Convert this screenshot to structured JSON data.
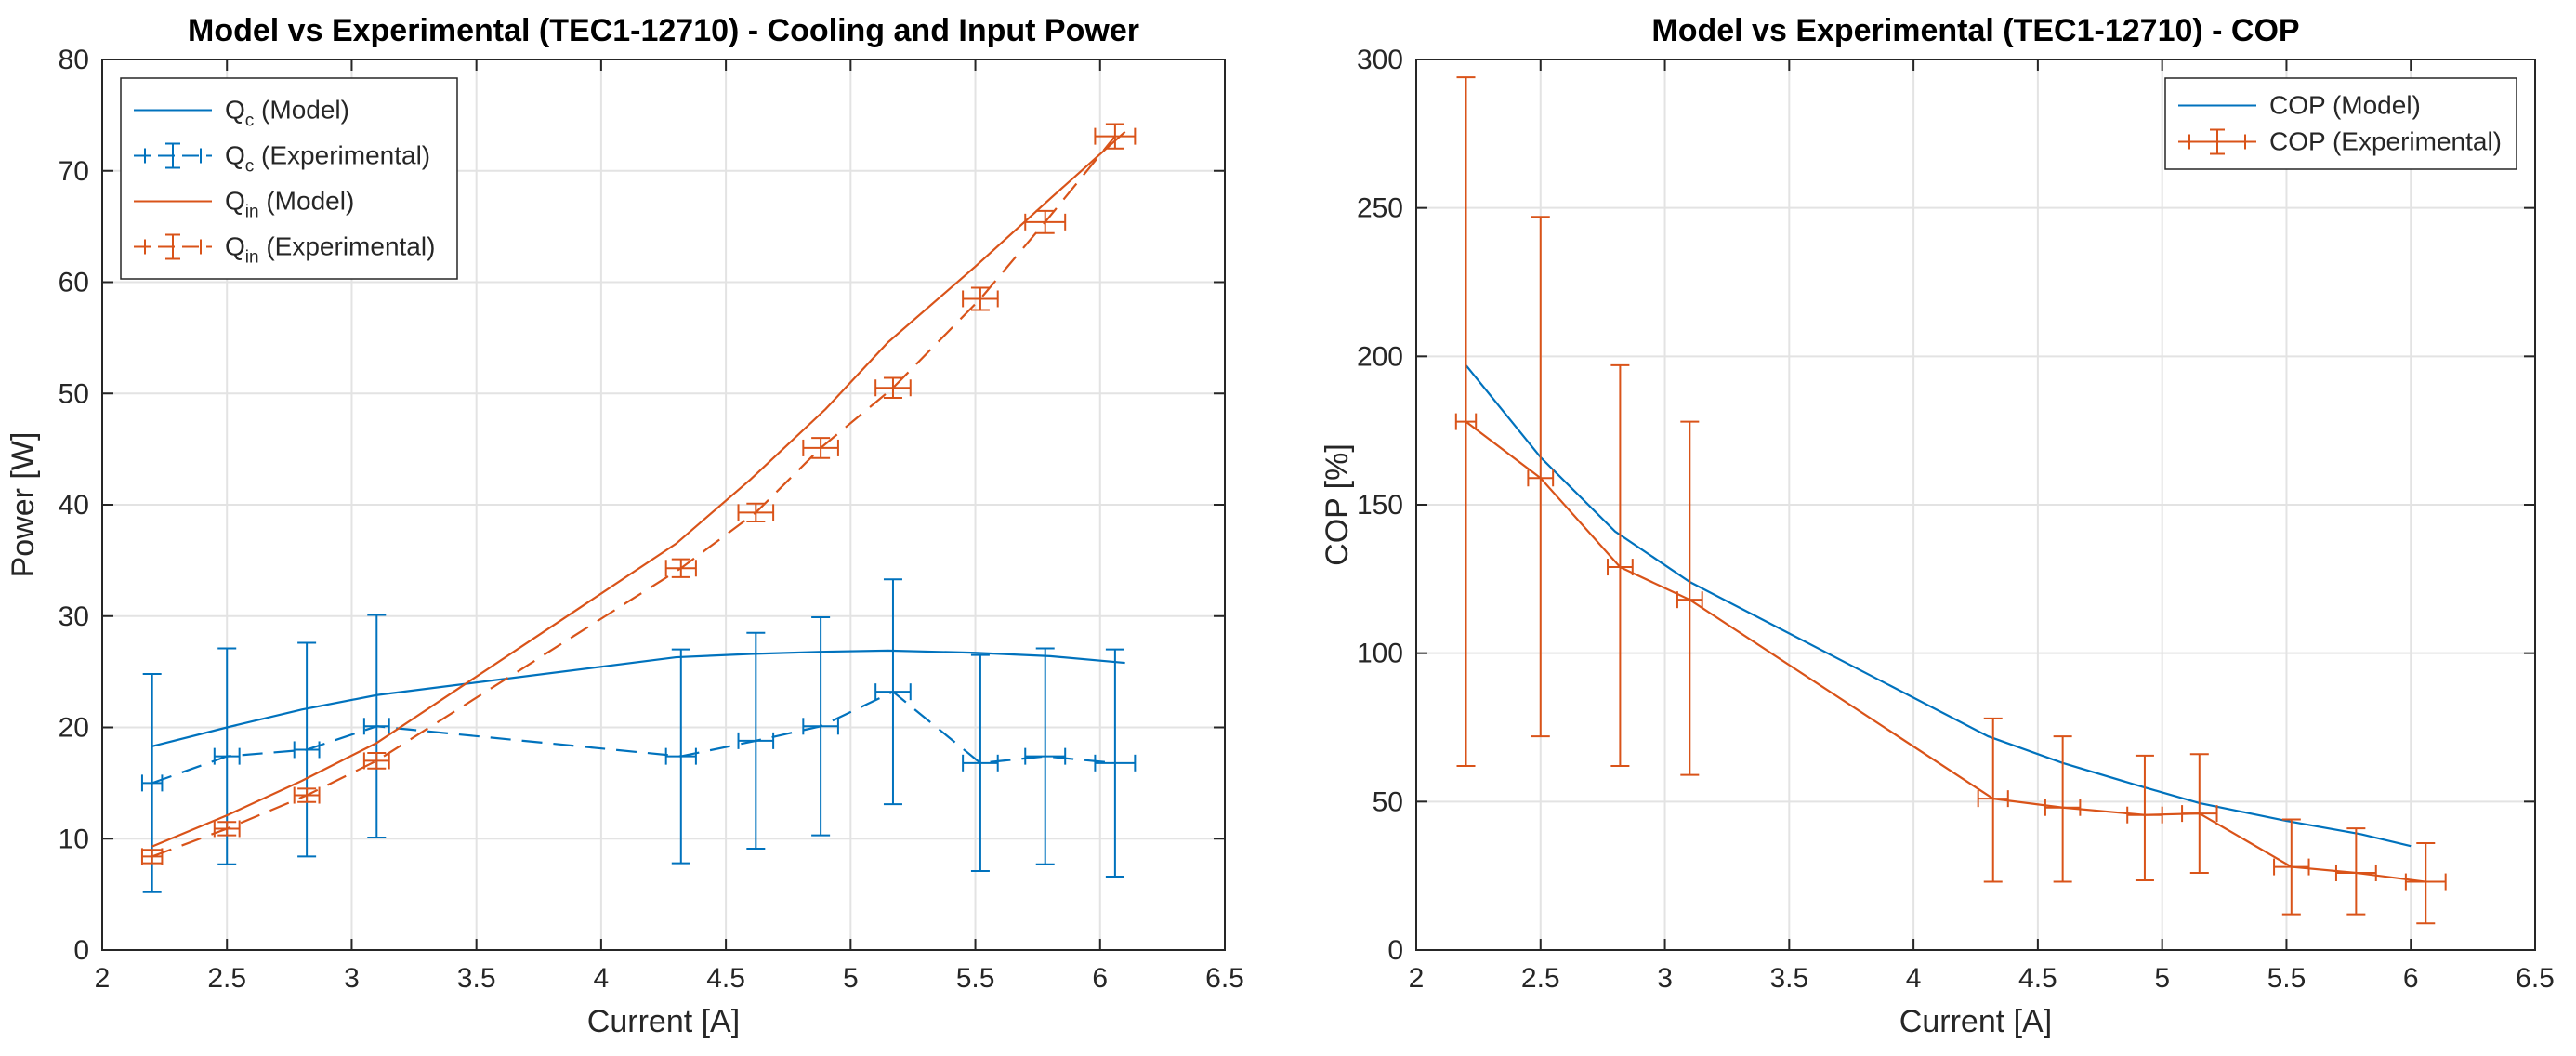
{
  "chart_data": [
    {
      "type": "line",
      "title": "Model vs Experimental (TEC1-12710) - Cooling and Input Power",
      "xlabel": "Current [A]",
      "ylabel": "Power [W]",
      "xlim": [
        2,
        6.5
      ],
      "ylim": [
        0,
        80
      ],
      "xticks": [
        "2",
        "2.5",
        "3",
        "3.5",
        "4",
        "4.5",
        "5",
        "5.5",
        "6",
        "6.5"
      ],
      "yticks": [
        "0",
        "10",
        "20",
        "30",
        "40",
        "50",
        "60",
        "70",
        "80"
      ],
      "grid": true,
      "legend_position": "top-left",
      "series": [
        {
          "name": "Q_c (Model)",
          "legend_main": "Q",
          "legend_sub": "c",
          "legend_rest": " (Model)",
          "color": "#0072BD",
          "style": "solid",
          "x": [
            2.2,
            2.5,
            2.8,
            3.1,
            4.3,
            4.6,
            4.9,
            5.15,
            5.5,
            5.8,
            6.1
          ],
          "y": [
            18.3,
            20.0,
            21.6,
            22.9,
            26.3,
            26.6,
            26.8,
            26.9,
            26.7,
            26.4,
            25.8
          ]
        },
        {
          "name": "Q_c (Experimental)",
          "legend_main": "Q",
          "legend_sub": "c",
          "legend_rest": " (Experimental)",
          "color": "#0072BD",
          "style": "dashed",
          "x": [
            2.2,
            2.5,
            2.82,
            3.1,
            4.32,
            4.62,
            4.88,
            5.17,
            5.52,
            5.78,
            6.06
          ],
          "y": [
            15.0,
            17.4,
            18.0,
            20.1,
            17.4,
            18.8,
            20.1,
            23.2,
            16.8,
            17.4,
            16.8
          ],
          "yerr": [
            9.8,
            9.7,
            9.6,
            10.0,
            9.6,
            9.7,
            9.8,
            10.1,
            9.7,
            9.7,
            10.2
          ],
          "xerr": [
            0.04,
            0.05,
            0.05,
            0.05,
            0.06,
            0.07,
            0.07,
            0.07,
            0.07,
            0.08,
            0.08
          ]
        },
        {
          "name": "Q_in (Model)",
          "legend_main": "Q",
          "legend_sub": "in",
          "legend_rest": " (Model)",
          "color": "#D95319",
          "style": "solid",
          "x": [
            2.2,
            2.5,
            2.8,
            3.1,
            4.3,
            4.6,
            4.9,
            5.15,
            5.5,
            5.8,
            6.1
          ],
          "y": [
            9.3,
            12.1,
            15.2,
            18.6,
            36.5,
            42.3,
            48.6,
            54.6,
            61.4,
            67.5,
            73.5
          ]
        },
        {
          "name": "Q_in (Experimental)",
          "legend_main": "Q",
          "legend_sub": "in",
          "legend_rest": " (Experimental)",
          "color": "#D95319",
          "style": "dashed",
          "x": [
            2.2,
            2.5,
            2.82,
            3.1,
            4.32,
            4.62,
            4.88,
            5.17,
            5.52,
            5.78,
            6.06
          ],
          "y": [
            8.4,
            10.9,
            13.9,
            17.0,
            34.3,
            39.3,
            45.1,
            50.5,
            58.5,
            65.4,
            73.1
          ],
          "yerr": [
            0.6,
            0.6,
            0.6,
            0.7,
            0.8,
            0.8,
            0.9,
            0.9,
            1.0,
            1.0,
            1.1
          ],
          "xerr": [
            0.04,
            0.05,
            0.05,
            0.05,
            0.06,
            0.07,
            0.07,
            0.07,
            0.07,
            0.08,
            0.08
          ]
        }
      ]
    },
    {
      "type": "line",
      "title": "Model vs Experimental (TEC1-12710) - COP",
      "xlabel": "Current [A]",
      "ylabel": "COP [%]",
      "xlim": [
        2,
        6.5
      ],
      "ylim": [
        0,
        300
      ],
      "xticks": [
        "2",
        "2.5",
        "3",
        "3.5",
        "4",
        "4.5",
        "5",
        "5.5",
        "6",
        "6.5"
      ],
      "yticks": [
        "0",
        "50",
        "100",
        "150",
        "200",
        "250",
        "300"
      ],
      "grid": true,
      "legend_position": "top-right",
      "series": [
        {
          "name": "COP (Model)",
          "legend_main": "COP (Model)",
          "legend_sub": "",
          "legend_rest": "",
          "color": "#0072BD",
          "style": "solid",
          "x": [
            2.2,
            2.5,
            2.8,
            3.1,
            4.3,
            4.6,
            4.9,
            5.15,
            5.5,
            5.8,
            6.0
          ],
          "y": [
            197,
            166,
            141,
            124,
            72,
            63,
            55.5,
            49.5,
            43.5,
            39,
            35
          ]
        },
        {
          "name": "COP (Experimental)",
          "legend_main": "COP (Experimental)",
          "legend_sub": "",
          "legend_rest": "",
          "color": "#D95319",
          "style": "solid",
          "x": [
            2.2,
            2.5,
            2.82,
            3.1,
            4.32,
            4.6,
            4.93,
            5.15,
            5.52,
            5.78,
            6.06
          ],
          "y": [
            178,
            159,
            129,
            118,
            51,
            48,
            45.5,
            46,
            28,
            26,
            23
          ],
          "yerr_low": [
            116,
            87,
            67,
            59,
            28,
            25,
            22,
            20,
            16,
            14,
            14
          ],
          "yerr_high": [
            116,
            88,
            68,
            60,
            27,
            24,
            20,
            20,
            16,
            15,
            13
          ],
          "xerr": [
            0.04,
            0.05,
            0.05,
            0.05,
            0.06,
            0.07,
            0.07,
            0.07,
            0.07,
            0.08,
            0.08
          ]
        }
      ]
    }
  ]
}
